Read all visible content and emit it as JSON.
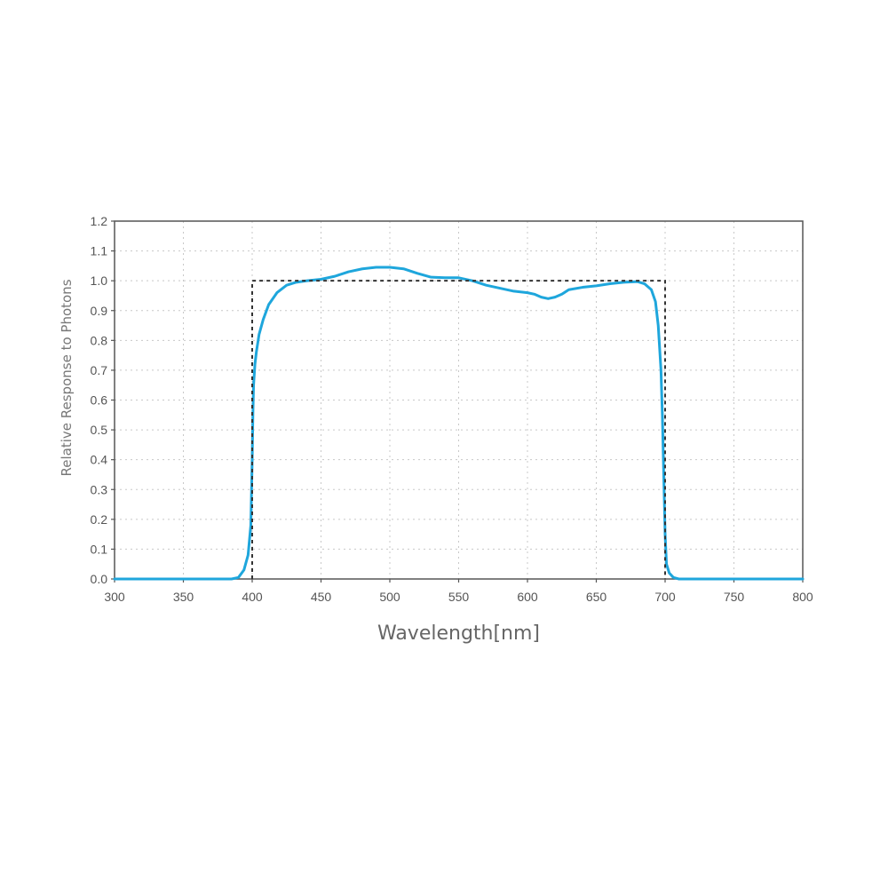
{
  "chart_data": {
    "type": "line",
    "title": "",
    "xlabel": "Wavelength[nm]",
    "ylabel": "Relative Response to Photons",
    "xlim": [
      300,
      800
    ],
    "ylim": [
      0.0,
      1.2
    ],
    "x_ticks": [
      "300",
      "350",
      "400",
      "450",
      "500",
      "550",
      "600",
      "650",
      "700",
      "750",
      "800"
    ],
    "y_ticks": [
      "0.0",
      "0.1",
      "0.2",
      "0.3",
      "0.4",
      "0.5",
      "0.6",
      "0.7",
      "0.8",
      "0.9",
      "1.0",
      "1.1",
      "1.2"
    ],
    "grid": true,
    "legend": "none",
    "series": [
      {
        "color": "#1ea6dc",
        "style": "solid",
        "x": [
          300,
          350,
          385,
          390,
          394,
          397,
          399,
          400,
          400.5,
          401,
          402,
          403,
          405,
          408,
          412,
          418,
          425,
          432,
          440,
          450,
          460,
          470,
          480,
          490,
          500,
          510,
          520,
          530,
          540,
          550,
          560,
          570,
          580,
          590,
          600,
          605,
          610,
          615,
          620,
          625,
          630,
          640,
          650,
          660,
          670,
          680,
          685,
          690,
          693,
          695,
          697,
          698,
          699,
          700,
          701,
          703,
          706,
          710,
          720,
          750,
          800
        ],
        "y": [
          0.0,
          0.0,
          0.0,
          0.005,
          0.03,
          0.08,
          0.18,
          0.4,
          0.55,
          0.65,
          0.72,
          0.76,
          0.82,
          0.87,
          0.92,
          0.96,
          0.985,
          0.995,
          1.0,
          1.005,
          1.015,
          1.03,
          1.04,
          1.045,
          1.045,
          1.04,
          1.025,
          1.012,
          1.01,
          1.01,
          1.0,
          0.985,
          0.975,
          0.965,
          0.96,
          0.955,
          0.945,
          0.94,
          0.945,
          0.955,
          0.97,
          0.978,
          0.983,
          0.99,
          0.995,
          0.997,
          0.99,
          0.97,
          0.93,
          0.85,
          0.7,
          0.55,
          0.35,
          0.15,
          0.05,
          0.02,
          0.005,
          0.0,
          0.0,
          0.0,
          0.0
        ]
      },
      {
        "color": "#333333",
        "style": "dotted",
        "x": [
          400,
          400,
          700,
          700
        ],
        "y": [
          0.0,
          1.0,
          1.0,
          0.0
        ]
      }
    ]
  }
}
